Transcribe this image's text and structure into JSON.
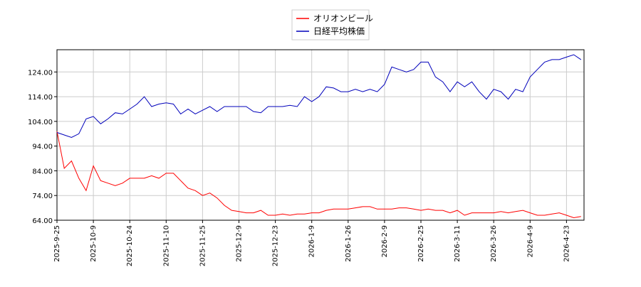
{
  "chart_data": {
    "type": "line",
    "categories": [
      "2025-9-25",
      null,
      null,
      null,
      null,
      "2025-10-9",
      null,
      null,
      null,
      null,
      "2025-10-24",
      null,
      null,
      null,
      null,
      "2025-11-10",
      null,
      null,
      null,
      null,
      "2025-11-25",
      null,
      null,
      null,
      null,
      "2025-12-9",
      null,
      null,
      null,
      null,
      "2025-12-23",
      null,
      null,
      null,
      null,
      "2026-1-9",
      null,
      null,
      null,
      null,
      "2026-1-26",
      null,
      null,
      null,
      null,
      "2026-2-9",
      null,
      null,
      null,
      null,
      "2026-2-25",
      null,
      null,
      null,
      null,
      "2026-3-11",
      null,
      null,
      null,
      null,
      "2026-3-26",
      null,
      null,
      null,
      null,
      "2026-4-9",
      null,
      null,
      null,
      null,
      "2026-4-23",
      null,
      null
    ],
    "series": [
      {
        "name": "オリオンビール",
        "color": "#ff0000",
        "values": [
          100,
          85,
          88,
          81,
          76,
          86,
          80,
          79,
          78,
          79,
          81,
          81,
          81,
          82,
          81,
          83,
          83,
          80,
          77,
          76,
          74,
          75,
          73,
          70,
          68,
          67.5,
          67,
          67,
          68,
          66,
          66,
          66.5,
          66,
          66.5,
          66.5,
          67,
          67,
          68,
          68.5,
          68.5,
          68.5,
          69,
          69.5,
          69.5,
          68.5,
          68.5,
          68.5,
          69,
          69,
          68.5,
          68,
          68.5,
          68,
          68,
          67,
          68,
          66,
          67,
          67,
          67,
          67,
          67.5,
          67,
          67.5,
          68,
          67,
          66,
          66,
          66.5,
          67,
          66,
          65,
          65.5
        ]
      },
      {
        "name": "日経平均株価",
        "color": "#0000bb",
        "values": [
          99.5,
          98.5,
          97.5,
          99,
          105,
          106,
          103,
          105,
          107.5,
          107,
          109,
          111,
          114,
          110,
          111,
          111.5,
          111,
          107,
          109,
          107,
          108.5,
          110,
          108,
          110,
          110,
          110,
          110,
          108,
          107.5,
          110,
          110,
          110,
          110.5,
          110,
          114,
          112,
          114,
          118,
          117.5,
          116,
          116,
          117,
          116,
          117,
          116,
          119,
          126,
          125,
          124,
          125,
          128,
          128,
          122,
          120,
          116,
          120,
          118,
          120,
          116,
          113,
          117,
          116,
          113,
          117,
          116,
          122,
          125,
          128,
          129,
          129,
          130,
          131,
          129
        ]
      }
    ],
    "ylim": [
      64,
      133
    ],
    "yticks": [
      {
        "value": 64,
        "label": "64.00"
      },
      {
        "value": 74,
        "label": "74.00"
      },
      {
        "value": 84,
        "label": "84.00"
      },
      {
        "value": 94,
        "label": "94.00"
      },
      {
        "value": 104,
        "label": "104.00"
      },
      {
        "value": 114,
        "label": "114.00"
      },
      {
        "value": 124,
        "label": "124.00"
      }
    ],
    "grid": true,
    "legend": "top"
  }
}
